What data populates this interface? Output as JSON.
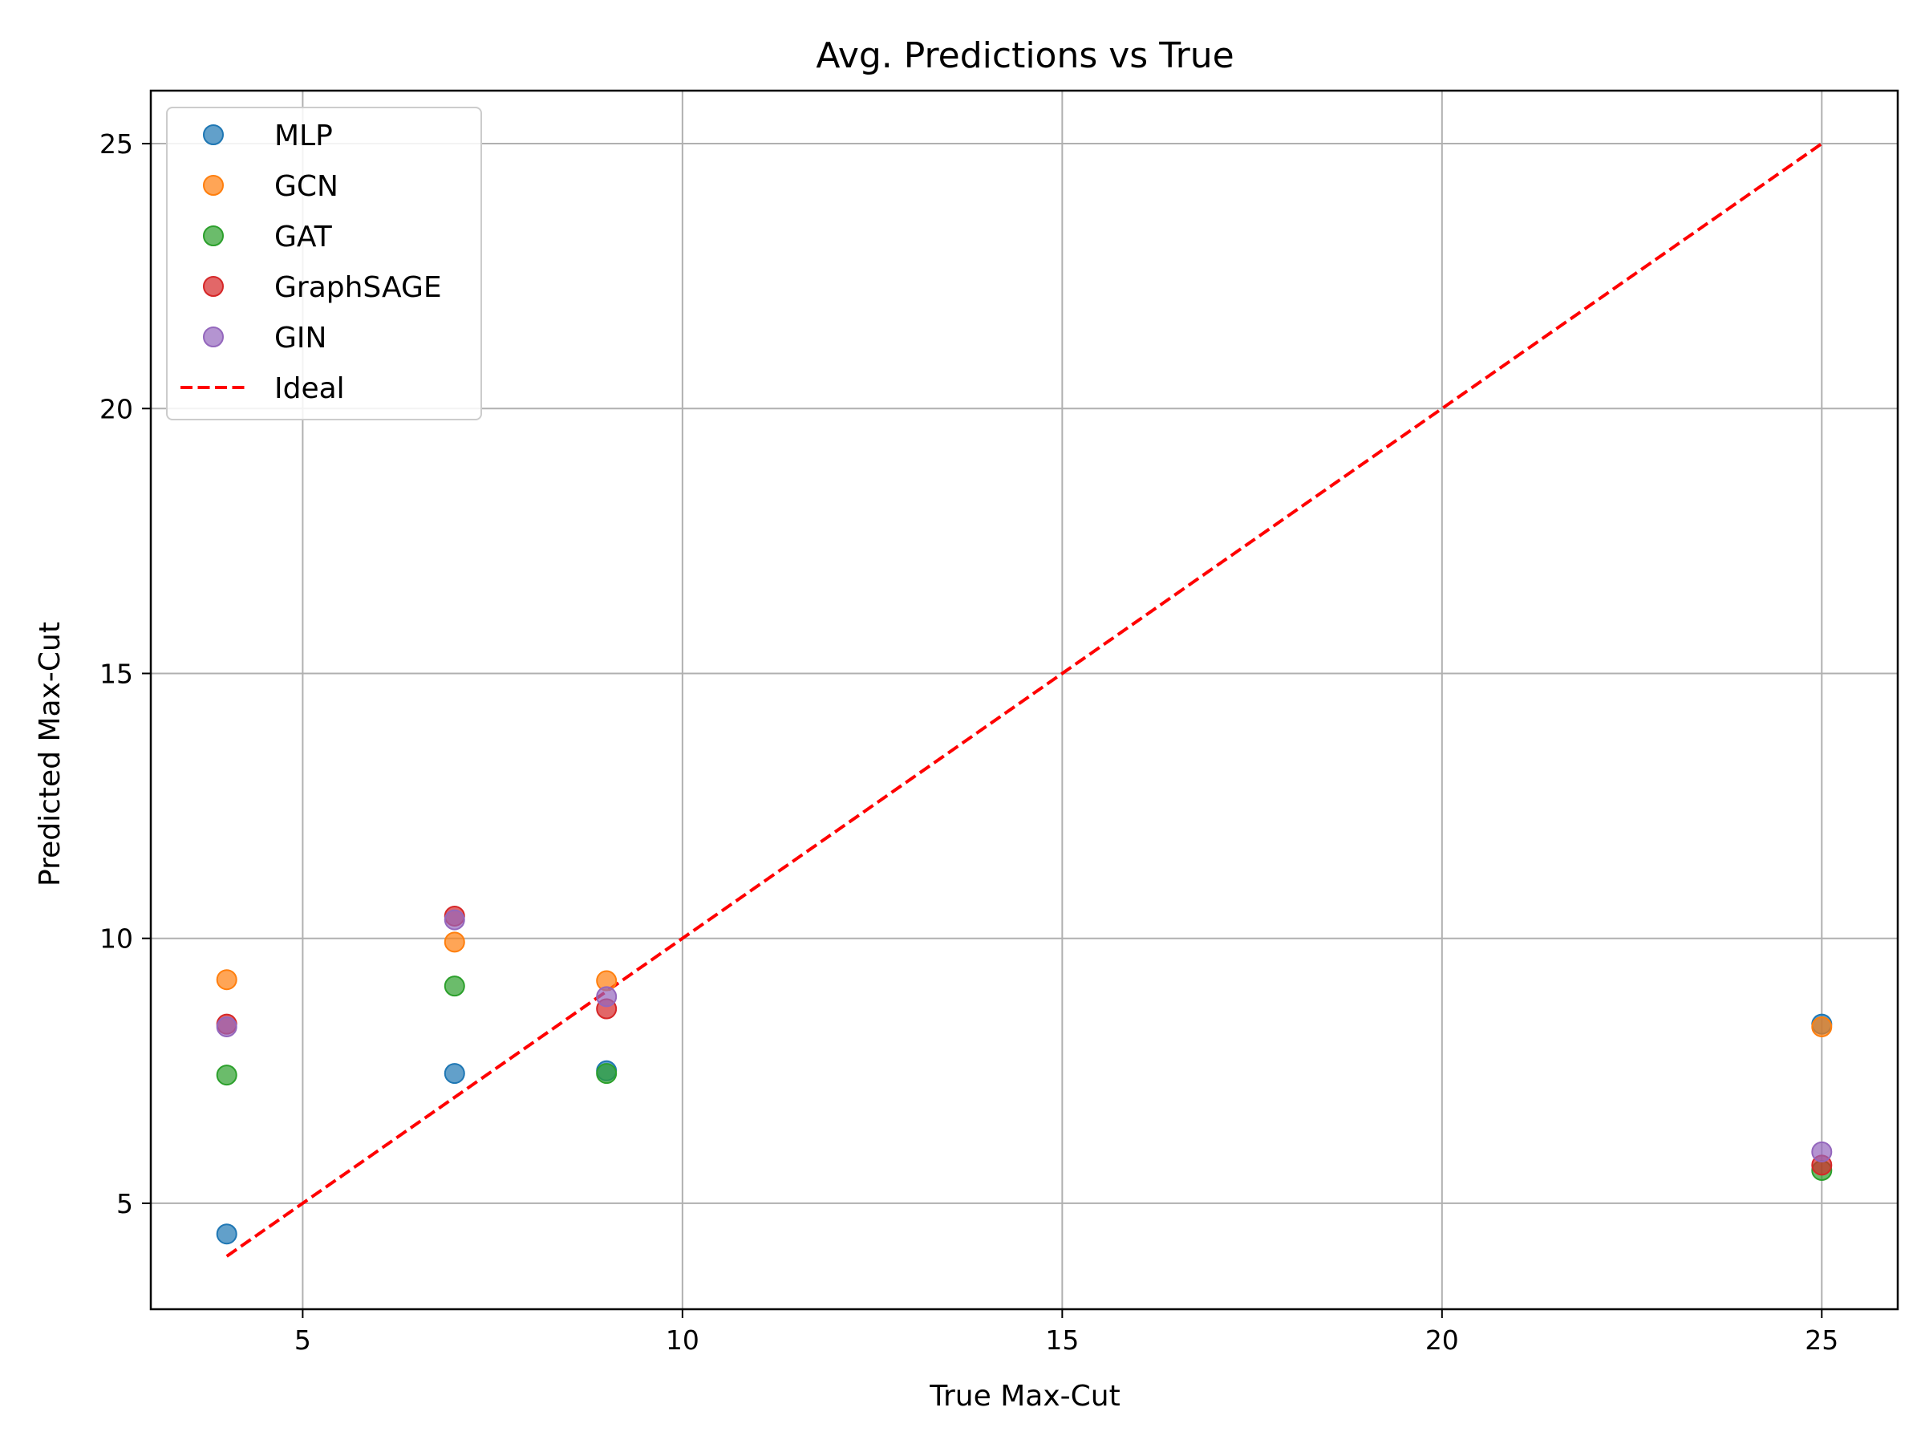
{
  "chart_data": {
    "type": "scatter",
    "title": "Avg. Predictions vs True",
    "xlabel": "True Max-Cut",
    "ylabel": "Predicted Max-Cut",
    "xlim": [
      3,
      26
    ],
    "ylim": [
      3,
      26
    ],
    "xticks": [
      5,
      10,
      15,
      20,
      25
    ],
    "yticks": [
      5,
      10,
      15,
      20,
      25
    ],
    "grid": true,
    "legend_position": "top-left",
    "series": [
      {
        "name": "MLP",
        "color": "#1f77b4",
        "points": [
          [
            4,
            4.42
          ],
          [
            7,
            7.45
          ],
          [
            9,
            7.5
          ],
          [
            25,
            8.38
          ]
        ]
      },
      {
        "name": "GCN",
        "color": "#ff7f0e",
        "points": [
          [
            4,
            9.22
          ],
          [
            7,
            9.93
          ],
          [
            9,
            9.2
          ],
          [
            25,
            8.33
          ]
        ]
      },
      {
        "name": "GAT",
        "color": "#2ca02c",
        "points": [
          [
            4,
            7.42
          ],
          [
            7,
            9.1
          ],
          [
            9,
            7.45
          ],
          [
            25,
            5.62
          ]
        ]
      },
      {
        "name": "GraphSAGE",
        "color": "#d62728",
        "points": [
          [
            4,
            8.38
          ],
          [
            7,
            10.42
          ],
          [
            9,
            8.67
          ],
          [
            25,
            5.72
          ]
        ]
      },
      {
        "name": "GIN",
        "color": "#9467bd",
        "points": [
          [
            4,
            8.33
          ],
          [
            7,
            10.35
          ],
          [
            9,
            8.9
          ],
          [
            25,
            5.97
          ]
        ]
      }
    ],
    "reference_line": {
      "name": "Ideal",
      "color": "#ff0000",
      "style": "dashed",
      "x": [
        4,
        25
      ],
      "y": [
        4,
        25
      ]
    }
  }
}
